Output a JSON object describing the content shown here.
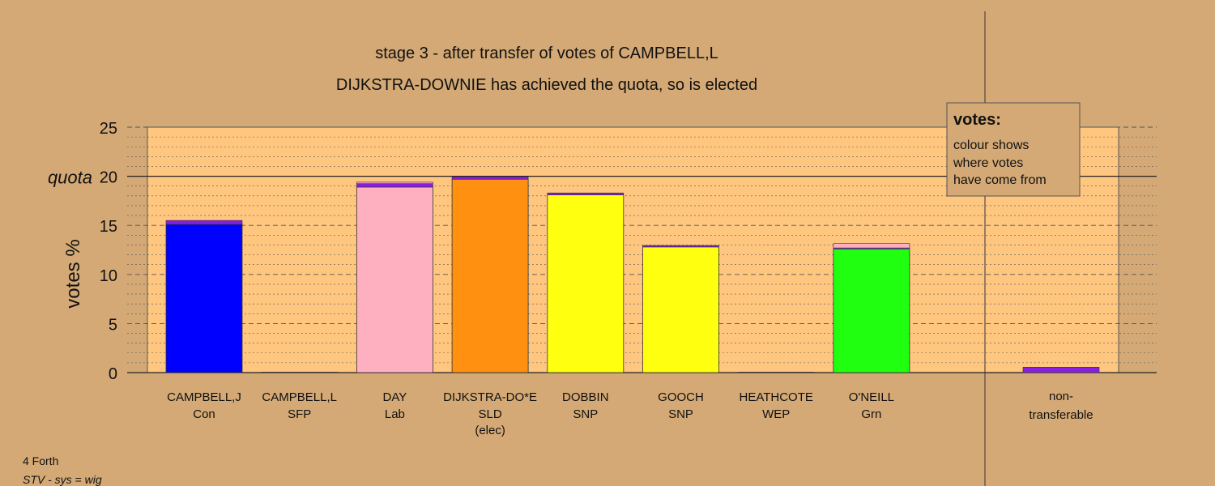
{
  "chart_data": {
    "type": "bar",
    "title": "stage 3 - after transfer of votes of CAMPBELL,L",
    "subtitle": "DIJKSTRA-DOWNIE has achieved the quota, so is elected",
    "ylabel": "votes %",
    "ylim": [
      0,
      25
    ],
    "yticks": [
      "0",
      "5",
      "10",
      "15",
      "20",
      "25"
    ],
    "quota": {
      "label": "quota",
      "value": 20
    },
    "grid": true,
    "candidates": [
      {
        "name": "CAMPBELL,J",
        "party": "Con",
        "extra": "",
        "color": "#0000ff",
        "base": 15.1,
        "transfer": 0.4
      },
      {
        "name": "CAMPBELL,L",
        "party": "SFP",
        "extra": "",
        "color": "#aa00ff",
        "base": 0,
        "transfer": 0.05
      },
      {
        "name": "DAY",
        "party": "Lab",
        "extra": "",
        "color": "#ffb0c0",
        "base": 18.9,
        "transfer": 0.35,
        "top_color": "#ffb0c0",
        "top": 0.15
      },
      {
        "name": "DIJKSTRA-DO*E",
        "party": "SLD",
        "extra": "(elec)",
        "color": "#ff9010",
        "base": 19.7,
        "transfer": 0.25
      },
      {
        "name": "DOBBIN",
        "party": "SNP",
        "extra": "",
        "color": "#ffff10",
        "base": 18.1,
        "transfer": 0.2
      },
      {
        "name": "GOOCH",
        "party": "SNP",
        "extra": "",
        "color": "#ffff10",
        "base": 12.8,
        "transfer": 0.15
      },
      {
        "name": "HEATHCOTE",
        "party": "WEP",
        "extra": "",
        "color": "#aa00ff",
        "base": 0,
        "transfer": 0.05
      },
      {
        "name": "O'NEILL",
        "party": "Grn",
        "extra": "",
        "color": "#20ff10",
        "base": 12.6,
        "transfer": 0.1,
        "top_color": "#ffb0c0",
        "top": 0.45
      }
    ],
    "nontransferable": {
      "label1": "non-",
      "label2": "transferable",
      "value": 0.55
    },
    "transfer_color": "#8a1ee0",
    "legend": {
      "title": "votes:",
      "lines": [
        "colour shows",
        "where votes",
        "have come from"
      ],
      "position": "top-right"
    }
  },
  "footer": {
    "constituency": "4 Forth",
    "system": "STV - sys = wig"
  }
}
